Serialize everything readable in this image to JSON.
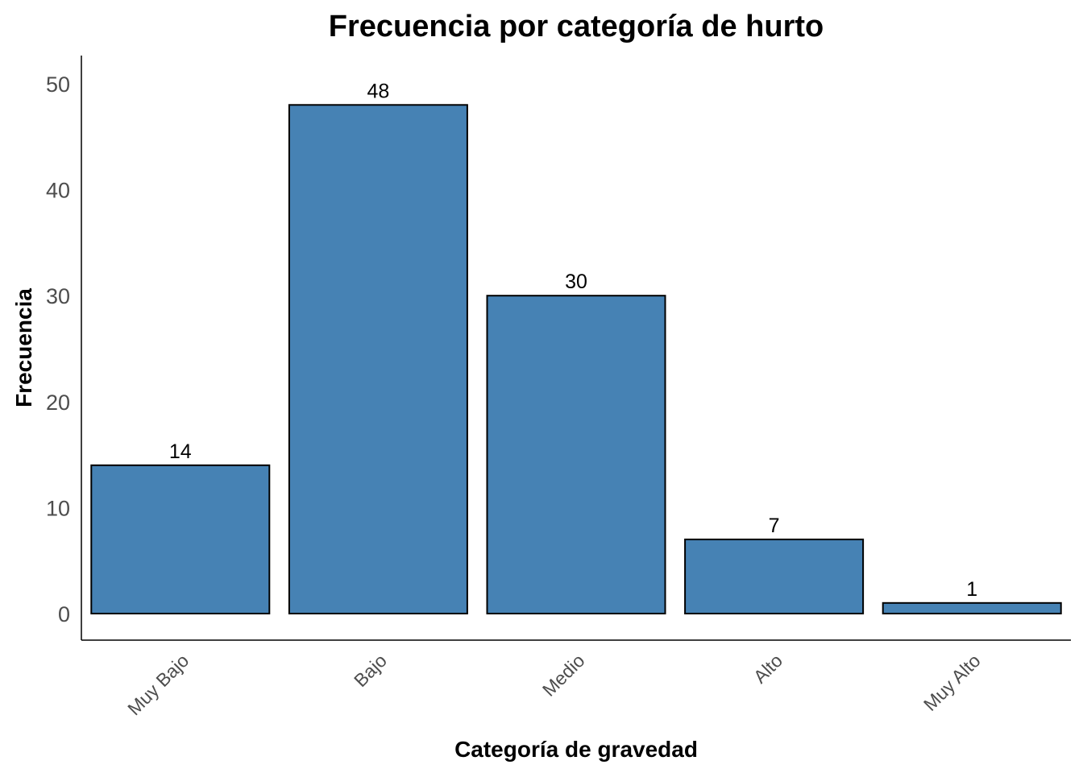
{
  "chart_data": {
    "type": "bar",
    "title": "Frecuencia por categoría de hurto",
    "xlabel": "Categoría de gravedad",
    "ylabel": "Frecuencia",
    "categories": [
      "Muy Bajo",
      "Bajo",
      "Medio",
      "Alto",
      "Muy Alto"
    ],
    "values": [
      14,
      48,
      30,
      7,
      1
    ],
    "data_labels": [
      "14",
      "48",
      "30",
      "7",
      "1"
    ],
    "yticks": [
      0,
      10,
      20,
      30,
      40,
      50
    ],
    "ylim": [
      0,
      52.5
    ],
    "grid": false,
    "legend": "none",
    "bar_color": "#4682B4",
    "bar_outline": "#000000"
  }
}
